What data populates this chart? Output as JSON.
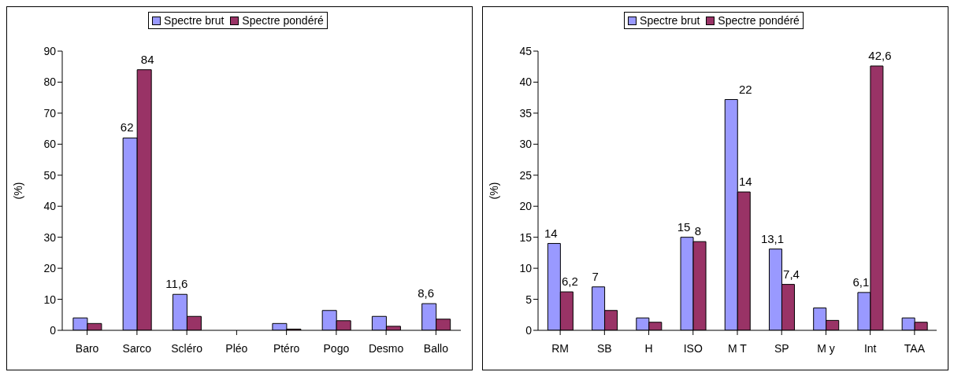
{
  "chart_data": [
    {
      "type": "bar",
      "ylabel": "(%)",
      "categories": [
        "Baro",
        "Sarco",
        "Scléro",
        "Pléo",
        "Ptéro",
        "Pogo",
        "Desmo",
        "Ballo"
      ],
      "ylim": [
        0,
        90
      ],
      "yticks": [
        0,
        10,
        20,
        30,
        40,
        50,
        60,
        70,
        80,
        90
      ],
      "legend": "top",
      "series": [
        {
          "name": "Spectre brut",
          "color": "#9999ff",
          "values": [
            4,
            62,
            11.6,
            0,
            2.2,
            6.4,
            4.5,
            8.6
          ],
          "value_labels": [
            null,
            "62",
            "11,6",
            null,
            null,
            null,
            null,
            "8,6"
          ]
        },
        {
          "name": "Spectre pondéré",
          "color": "#993366",
          "values": [
            2.2,
            84,
            4.5,
            0,
            0.4,
            3.1,
            1.3,
            3.6
          ],
          "value_labels": [
            null,
            "84",
            null,
            null,
            null,
            null,
            null,
            null
          ]
        }
      ]
    },
    {
      "type": "bar",
      "ylabel": "(%)",
      "categories": [
        "RM",
        "SB",
        "H",
        "ISO",
        "M T",
        "SP",
        "M y",
        "Int",
        "TAA"
      ],
      "ylim": [
        0,
        45
      ],
      "yticks": [
        0,
        5,
        10,
        15,
        20,
        25,
        30,
        35,
        40,
        45
      ],
      "legend": "top",
      "series": [
        {
          "name": "Spectre brut",
          "color": "#9999ff",
          "values": [
            14,
            7,
            2,
            15,
            37.2,
            13.1,
            3.6,
            6.1,
            2
          ],
          "value_labels": [
            "14",
            "7",
            null,
            "15",
            null,
            "13,1",
            null,
            "6,1",
            null
          ]
        },
        {
          "name": "Spectre pondéré",
          "color": "#993366",
          "values": [
            6.2,
            3.2,
            1.3,
            14.3,
            22.3,
            7.4,
            1.6,
            42.6,
            1.3
          ],
          "value_labels": [
            "6,2",
            null,
            null,
            null,
            null,
            "7,4",
            null,
            "42,6",
            null
          ]
        }
      ],
      "annotations": [
        {
          "text": "22",
          "x": "M T",
          "y": 37.2
        },
        {
          "text": "8",
          "x": "ISO",
          "y": 14.3
        },
        {
          "text": "14",
          "x": "M T",
          "y": 22.3
        }
      ]
    }
  ]
}
